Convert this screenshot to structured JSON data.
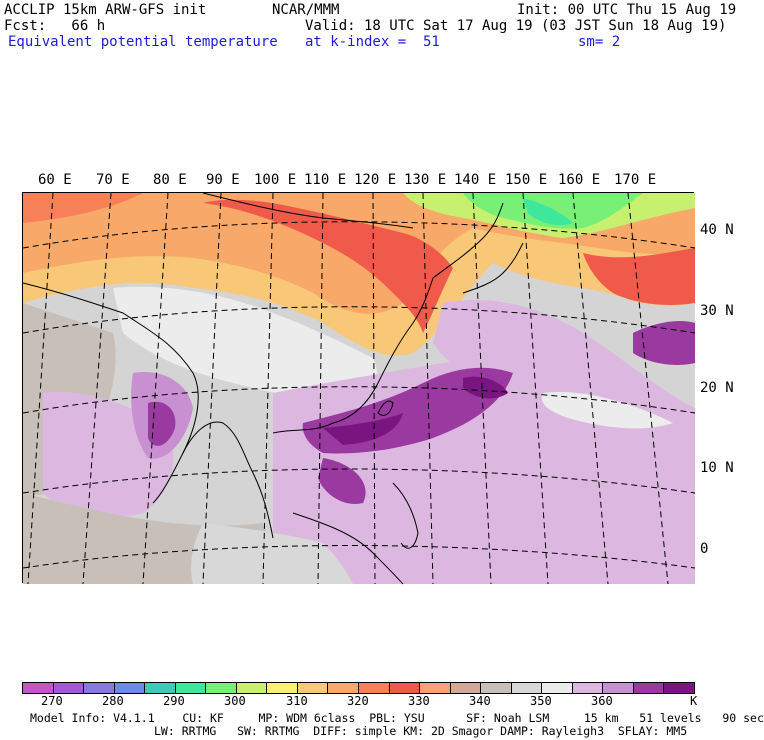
{
  "header": {
    "line1_left": "ACCLIP 15km ARW-GFS init",
    "line1_mid": "NCAR/MMM",
    "line1_right": "Init: 00 UTC Thu 15 Aug 19",
    "line2_left": "Fcst:   66 h",
    "line2_right": "Valid: 18 UTC Sat 17 Aug 19 (03 JST Sun 18 Aug 19)",
    "line3_left": "Equivalent potential temperature",
    "line3_mid": "at k-index =  51",
    "line3_right": "sm= 2"
  },
  "map": {
    "lon_labels": [
      "60 E",
      "70 E",
      "80 E",
      "90 E",
      "100 E",
      "110 E",
      "120 E",
      "130 E",
      "140 E",
      "150 E",
      "160 E",
      "170 E"
    ],
    "lat_labels": [
      "40 N",
      "30 N",
      "20 N",
      "10 N",
      "0"
    ]
  },
  "colorbar": {
    "colors": [
      "#c455c4",
      "#a25ad4",
      "#8a7ae0",
      "#6a8ae8",
      "#3ec8b8",
      "#3ee89a",
      "#78f078",
      "#c8f070",
      "#f8f070",
      "#f8c878",
      "#f8a868",
      "#f88058",
      "#f05a4a",
      "#f8a078",
      "#d4a898",
      "#c8c0b8",
      "#d8d8d8",
      "#ececec",
      "#dcb8e0",
      "#c890d0",
      "#9a3aa0",
      "#7a1480"
    ],
    "labels": [
      "270",
      "280",
      "290",
      "300",
      "310",
      "320",
      "330",
      "340",
      "350",
      "360",
      "K"
    ]
  },
  "model_info": {
    "line1": "Model Info: V4.1.1    CU: KF     MP: WDM 6class  PBL: YSU      SF: Noah LSM     15 km   51 levels   90 sec",
    "line2": "LW: RRTMG   SW: RRTMG  DIFF: simple KM: 2D Smagor DAMP: Rayleigh3  SFLAY: MM5"
  }
}
